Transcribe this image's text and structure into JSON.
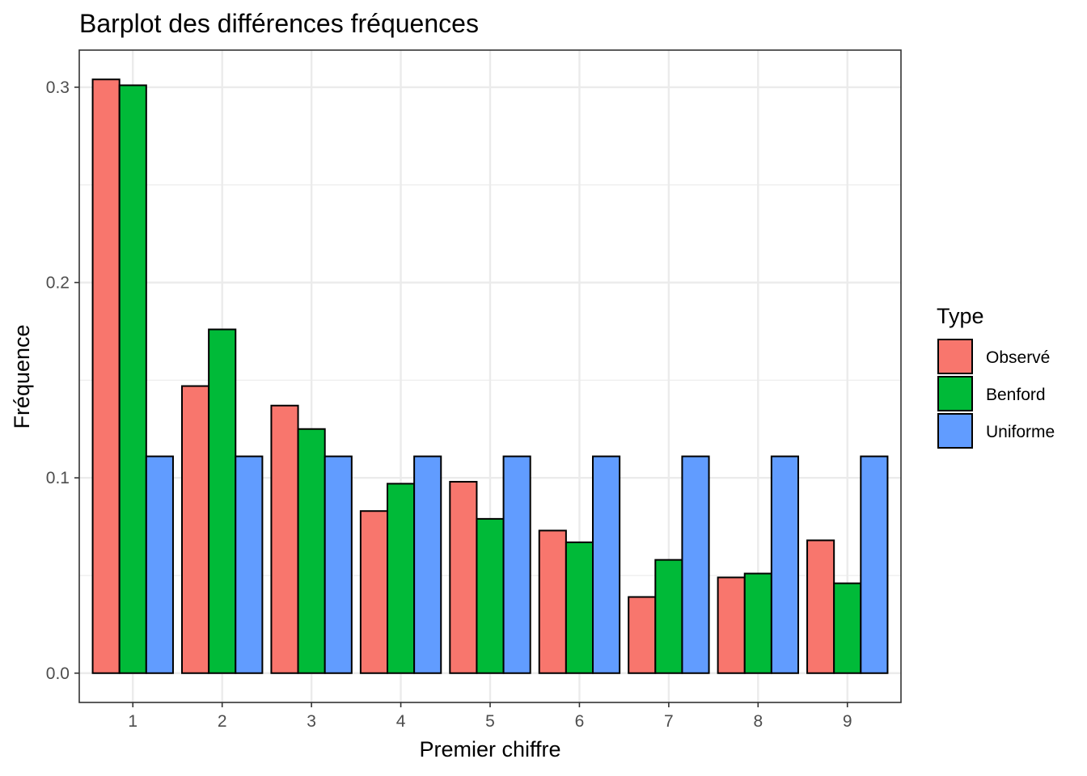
{
  "chart_data": {
    "type": "bar",
    "title": "Barplot des différences fréquences",
    "xlabel": "Premier chiffre",
    "ylabel": "Fréquence",
    "categories": [
      "1",
      "2",
      "3",
      "4",
      "5",
      "6",
      "7",
      "8",
      "9"
    ],
    "series": [
      {
        "name": "Observé",
        "color": "#F8766D",
        "values": [
          0.304,
          0.147,
          0.137,
          0.083,
          0.098,
          0.073,
          0.039,
          0.049,
          0.068
        ]
      },
      {
        "name": "Benford",
        "color": "#00BA38",
        "values": [
          0.301,
          0.176,
          0.125,
          0.097,
          0.079,
          0.067,
          0.058,
          0.051,
          0.046
        ]
      },
      {
        "name": "Uniforme",
        "color": "#619CFF",
        "values": [
          0.111,
          0.111,
          0.111,
          0.111,
          0.111,
          0.111,
          0.111,
          0.111,
          0.111
        ]
      }
    ],
    "yticks": [
      "0.0",
      "0.1",
      "0.2",
      "0.3"
    ],
    "ylim": [
      -0.015,
      0.319
    ],
    "grid": true,
    "legend_title": "Type",
    "legend_position": "right"
  }
}
